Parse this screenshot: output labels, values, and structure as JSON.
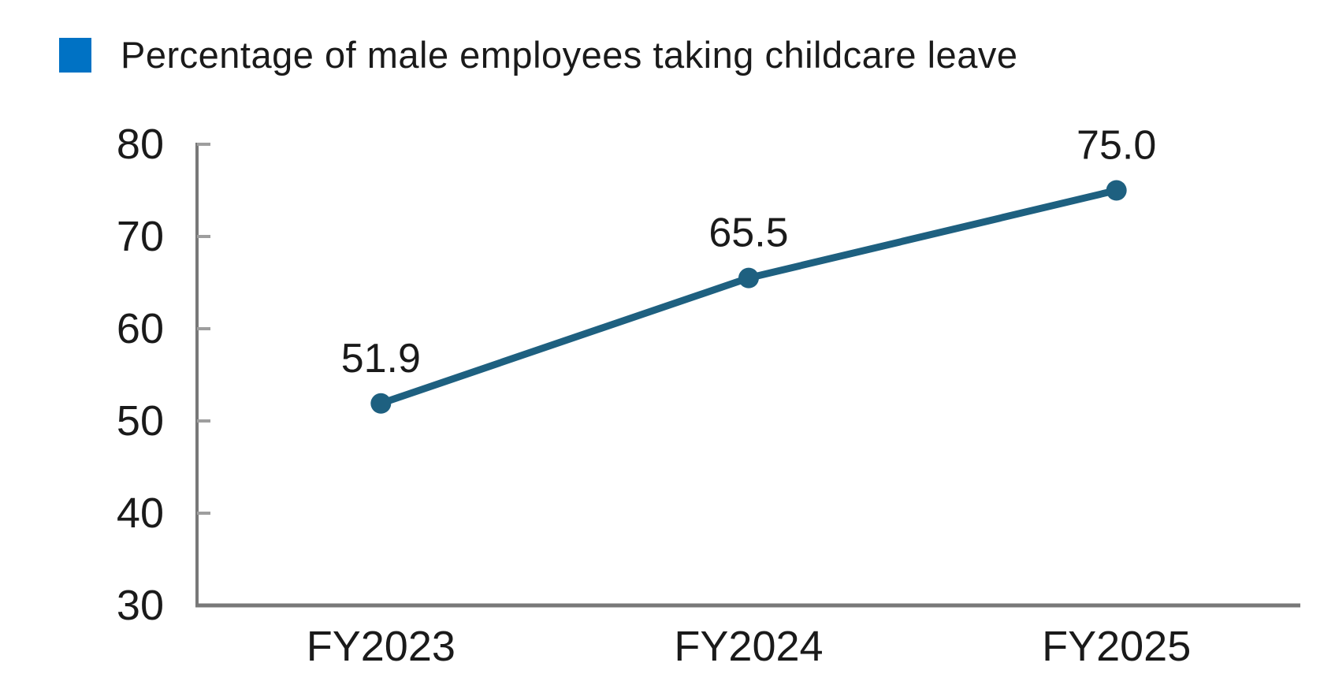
{
  "legend": {
    "label": "Percentage of male employees taking childcare leave",
    "marker_color": "#0072c4"
  },
  "chart_data": {
    "type": "line",
    "title": "Percentage of male employees taking childcare leave",
    "categories": [
      "FY2023",
      "FY2024",
      "FY2025"
    ],
    "series": [
      {
        "name": "Percentage of male employees taking childcare leave",
        "values": [
          51.9,
          65.5,
          75.0
        ],
        "color": "#1e6080"
      }
    ],
    "data_labels": [
      "51.9",
      "65.5",
      "75.0"
    ],
    "xlabel": "",
    "ylabel": "",
    "ylim": [
      30,
      80
    ],
    "yticks": [
      30,
      40,
      50,
      60,
      70,
      80
    ],
    "grid": false,
    "legend_position": "top-left",
    "colors": {
      "axis": "#787878",
      "tick": "#9e9e9e",
      "text": "#1a1a1a"
    }
  }
}
